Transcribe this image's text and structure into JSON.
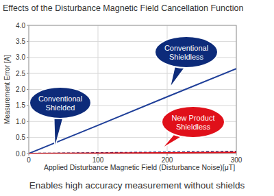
{
  "chart_data": {
    "type": "line",
    "title": "Effects of the Disturbance Magnetic Field Cancellation Function",
    "subtitle": "Enables high accuracy measurement without shields",
    "x_label": "Applied Disturbance Magnetic Field (Disturbance Noise)[μT]",
    "y_label": "Measurement Error [A]",
    "x": [
      0,
      100,
      200,
      300
    ],
    "series": [
      {
        "name": "Conventional Shieldless",
        "color": "#1f3f99",
        "line_style": "solid",
        "values": [
          0,
          0.88,
          1.77,
          2.65
        ]
      },
      {
        "name": "Conventional Shielded",
        "color": "#0d2b7a",
        "line_style": "dashed",
        "values": [
          0,
          0.02,
          0.04,
          0.06
        ]
      },
      {
        "name": "New Product Shieldless",
        "color": "#e0101a",
        "line_style": "solid",
        "values": [
          0,
          0.01,
          0.02,
          0.04
        ]
      }
    ],
    "xlim": [
      0,
      300
    ],
    "xticks": [
      0,
      100,
      200,
      300
    ],
    "ylim": [
      0,
      4
    ],
    "yticks": [
      {
        "value": 0,
        "label": "0.0"
      },
      {
        "value": 0.5,
        "label": "0.5"
      },
      {
        "value": 1,
        "label": "1.0"
      },
      {
        "value": 1.5,
        "label": "1.5"
      },
      {
        "value": 2,
        "label": "2.0"
      },
      {
        "value": 2.5,
        "label": "2.5"
      },
      {
        "value": 3,
        "label": "3.0"
      },
      {
        "value": 3.5,
        "label": "3.5"
      },
      {
        "value": 4,
        "label": "4.0"
      }
    ],
    "grid": true
  }
}
